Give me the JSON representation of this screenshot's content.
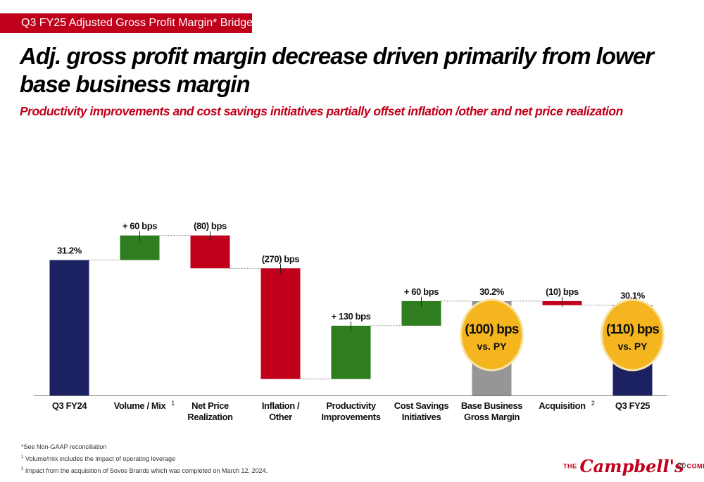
{
  "header": {
    "tag": "Q3 FY25 Adjusted Gross Profit Margin* Bridge",
    "title": "Adj. gross profit margin decrease driven primarily from lower base business margin",
    "subtitle": "Productivity improvements and cost savings initiatives partially offset inflation /other and net price realization"
  },
  "chart_data": {
    "type": "bar",
    "subtype": "waterfall",
    "unit": "% adjusted gross profit margin",
    "categories": [
      "Q3 FY24",
      "Volume / Mix",
      "Net Price Realization",
      "Inflation / Other",
      "Productivity Improvements",
      "Cost Savings Initiatives",
      "Base Business Gross Margin",
      "Acquisition",
      "Q3 FY25"
    ],
    "category_footnotes": [
      "",
      "1",
      "",
      "",
      "",
      "",
      "",
      "2",
      ""
    ],
    "bars": [
      {
        "kind": "total",
        "value": 31.2,
        "label": "31.2%",
        "color": "#1b2161"
      },
      {
        "kind": "delta",
        "value": 0.6,
        "label": "+ 60 bps",
        "color": "#2e7d1e"
      },
      {
        "kind": "delta",
        "value": -0.8,
        "label": "(80) bps",
        "color": "#c0001a"
      },
      {
        "kind": "delta",
        "value": -2.7,
        "label": "(270) bps",
        "color": "#c0001a"
      },
      {
        "kind": "delta",
        "value": 1.3,
        "label": "+ 130 bps",
        "color": "#2e7d1e"
      },
      {
        "kind": "delta",
        "value": 0.6,
        "label": "+ 60 bps",
        "color": "#2e7d1e"
      },
      {
        "kind": "total",
        "value": 30.2,
        "label": "30.2%",
        "color": "#969696"
      },
      {
        "kind": "delta",
        "value": -0.1,
        "label": "(10) bps",
        "color": "#c0001a"
      },
      {
        "kind": "total",
        "value": 30.1,
        "label": "30.1%",
        "color": "#1b2161"
      }
    ],
    "callouts": [
      {
        "bar": 6,
        "line1": "(100) bps",
        "line2": "vs. PY"
      },
      {
        "bar": 8,
        "line1": "(110) bps",
        "line2": "vs. PY"
      }
    ],
    "callout_color": "#f5b51e"
  },
  "footnotes": [
    {
      "marker": "",
      "text": "*See Non-GAAP reconciliation"
    },
    {
      "marker": "1",
      "text": "Volume/mix includes the impact of operating leverage"
    },
    {
      "marker": "2",
      "text": "Impact from the acquisition of Sovos Brands which was completed on March 12, 2024."
    }
  ],
  "logo": {
    "prefix": "THE",
    "name": "Campbell's",
    "suffix": "COMPANY"
  },
  "page_number": "20"
}
